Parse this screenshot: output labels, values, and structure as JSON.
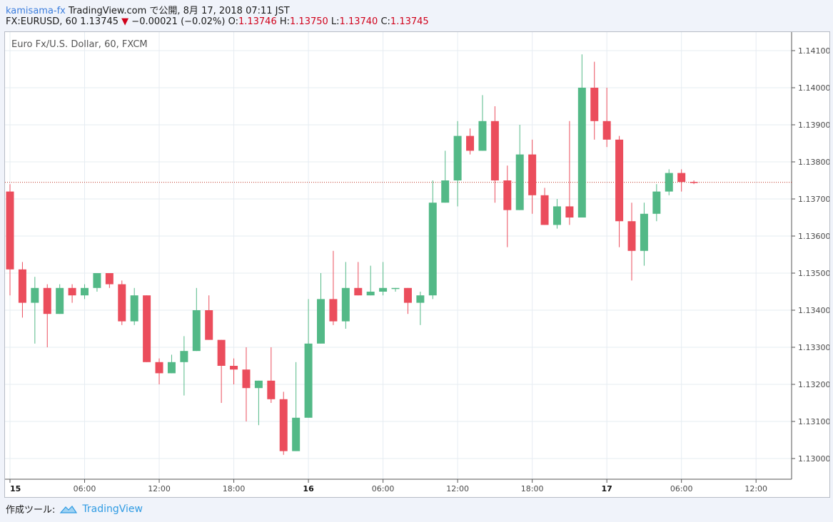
{
  "header": {
    "author": "kamisama-fx",
    "published": "TradingView.com で公開, 8月 17, 2018 07:11 JST",
    "symbol": "FX:EURUSD, 60",
    "last": "1.13745",
    "change_arrow": "▼",
    "change": "−0.00021 (−0.02%)",
    "o_label": "O:",
    "o": "1.13746",
    "h_label": "H:",
    "h": "1.13750",
    "l_label": "L:",
    "l": "1.13740",
    "c_label": "C:",
    "c": "1.13745"
  },
  "footer": {
    "label": "作成ツール:",
    "brand": "TradingView"
  },
  "colors": {
    "up": "#53b987",
    "down": "#eb4d5c",
    "grid": "#e6ecf2",
    "axis_text": "#4a4a4a",
    "price_line": "#c0392b"
  },
  "chart_data": {
    "type": "candlestick",
    "title": "Euro Fx/U.S. Dollar, 60, FXCM",
    "interval_hours": 1,
    "x_start": "15 00:00",
    "ylim": [
      1.1298,
      1.1412
    ],
    "y_ticks": [
      1.13,
      1.131,
      1.132,
      1.133,
      1.134,
      1.135,
      1.136,
      1.137,
      1.138,
      1.139,
      1.14,
      1.141
    ],
    "y_tick_labels": [
      "1.13000",
      "1.13100",
      "1.13200",
      "1.13300",
      "1.13400",
      "1.13500",
      "1.13600",
      "1.13700",
      "1.13800",
      "1.13900",
      "1.14000",
      "1.14100"
    ],
    "x_ticks": [
      0,
      6,
      12,
      18,
      24,
      30,
      36,
      42,
      48,
      54,
      60
    ],
    "x_tick_labels": [
      "15",
      "06:00",
      "12:00",
      "18:00",
      "16",
      "06:00",
      "12:00",
      "18:00",
      "17",
      "06:00",
      "12:00"
    ],
    "x_tick_bold": [
      true,
      false,
      false,
      false,
      true,
      false,
      false,
      false,
      true,
      false,
      false
    ],
    "last_price": 1.13745,
    "grid": true,
    "candles": [
      {
        "o": 1.1372,
        "h": 1.1374,
        "l": 1.1344,
        "c": 1.1351
      },
      {
        "o": 1.1351,
        "h": 1.1353,
        "l": 1.1338,
        "c": 1.1342
      },
      {
        "o": 1.1342,
        "h": 1.1349,
        "l": 1.1331,
        "c": 1.1346
      },
      {
        "o": 1.1346,
        "h": 1.1347,
        "l": 1.133,
        "c": 1.1339
      },
      {
        "o": 1.1339,
        "h": 1.1347,
        "l": 1.1339,
        "c": 1.1346
      },
      {
        "o": 1.1346,
        "h": 1.1347,
        "l": 1.1342,
        "c": 1.1344
      },
      {
        "o": 1.1344,
        "h": 1.1347,
        "l": 1.1343,
        "c": 1.1346
      },
      {
        "o": 1.1346,
        "h": 1.135,
        "l": 1.1345,
        "c": 1.135
      },
      {
        "o": 1.135,
        "h": 1.135,
        "l": 1.1346,
        "c": 1.1347
      },
      {
        "o": 1.1347,
        "h": 1.1348,
        "l": 1.1336,
        "c": 1.1337
      },
      {
        "o": 1.1337,
        "h": 1.1346,
        "l": 1.1336,
        "c": 1.1344
      },
      {
        "o": 1.1344,
        "h": 1.1344,
        "l": 1.1326,
        "c": 1.1326
      },
      {
        "o": 1.1326,
        "h": 1.1327,
        "l": 1.132,
        "c": 1.1323
      },
      {
        "o": 1.1323,
        "h": 1.1328,
        "l": 1.1323,
        "c": 1.1326
      },
      {
        "o": 1.1326,
        "h": 1.1333,
        "l": 1.1317,
        "c": 1.1329
      },
      {
        "o": 1.1329,
        "h": 1.1346,
        "l": 1.1329,
        "c": 1.134
      },
      {
        "o": 1.134,
        "h": 1.1344,
        "l": 1.1332,
        "c": 1.1332
      },
      {
        "o": 1.1332,
        "h": 1.1332,
        "l": 1.1315,
        "c": 1.1325
      },
      {
        "o": 1.1325,
        "h": 1.1327,
        "l": 1.132,
        "c": 1.1324
      },
      {
        "o": 1.1324,
        "h": 1.133,
        "l": 1.131,
        "c": 1.1319
      },
      {
        "o": 1.1319,
        "h": 1.1321,
        "l": 1.1309,
        "c": 1.1321
      },
      {
        "o": 1.1321,
        "h": 1.133,
        "l": 1.1315,
        "c": 1.1316
      },
      {
        "o": 1.1316,
        "h": 1.1318,
        "l": 1.1301,
        "c": 1.1302
      },
      {
        "o": 1.1302,
        "h": 1.1326,
        "l": 1.1302,
        "c": 1.1311
      },
      {
        "o": 1.1311,
        "h": 1.1343,
        "l": 1.1311,
        "c": 1.1331
      },
      {
        "o": 1.1331,
        "h": 1.135,
        "l": 1.1331,
        "c": 1.1343
      },
      {
        "o": 1.1343,
        "h": 1.1356,
        "l": 1.1336,
        "c": 1.1337
      },
      {
        "o": 1.1337,
        "h": 1.1353,
        "l": 1.1335,
        "c": 1.1346
      },
      {
        "o": 1.1346,
        "h": 1.1353,
        "l": 1.1344,
        "c": 1.1344
      },
      {
        "o": 1.1344,
        "h": 1.1352,
        "l": 1.1344,
        "c": 1.1345
      },
      {
        "o": 1.1345,
        "h": 1.1353,
        "l": 1.1344,
        "c": 1.1346
      },
      {
        "o": 1.1346,
        "h": 1.1346,
        "l": 1.1345,
        "c": 1.1346
      },
      {
        "o": 1.1346,
        "h": 1.1346,
        "l": 1.1339,
        "c": 1.1342
      },
      {
        "o": 1.1342,
        "h": 1.1345,
        "l": 1.1336,
        "c": 1.1344
      },
      {
        "o": 1.1344,
        "h": 1.1375,
        "l": 1.1343,
        "c": 1.1369
      },
      {
        "o": 1.1369,
        "h": 1.1383,
        "l": 1.1369,
        "c": 1.1375
      },
      {
        "o": 1.1375,
        "h": 1.1391,
        "l": 1.1368,
        "c": 1.1387
      },
      {
        "o": 1.1387,
        "h": 1.1389,
        "l": 1.1382,
        "c": 1.1383
      },
      {
        "o": 1.1383,
        "h": 1.1398,
        "l": 1.1383,
        "c": 1.1391
      },
      {
        "o": 1.1391,
        "h": 1.1395,
        "l": 1.1369,
        "c": 1.1375
      },
      {
        "o": 1.1375,
        "h": 1.1379,
        "l": 1.1357,
        "c": 1.1367
      },
      {
        "o": 1.1367,
        "h": 1.139,
        "l": 1.1367,
        "c": 1.1382
      },
      {
        "o": 1.1382,
        "h": 1.1386,
        "l": 1.1366,
        "c": 1.1371
      },
      {
        "o": 1.1371,
        "h": 1.1373,
        "l": 1.1363,
        "c": 1.1363
      },
      {
        "o": 1.1363,
        "h": 1.137,
        "l": 1.1362,
        "c": 1.1368
      },
      {
        "o": 1.1368,
        "h": 1.1391,
        "l": 1.1363,
        "c": 1.1365
      },
      {
        "o": 1.1365,
        "h": 1.1409,
        "l": 1.1365,
        "c": 1.14
      },
      {
        "o": 1.14,
        "h": 1.1407,
        "l": 1.1386,
        "c": 1.1391
      },
      {
        "o": 1.1391,
        "h": 1.14,
        "l": 1.1384,
        "c": 1.1386
      },
      {
        "o": 1.1386,
        "h": 1.1387,
        "l": 1.1357,
        "c": 1.1364
      },
      {
        "o": 1.1364,
        "h": 1.1369,
        "l": 1.1348,
        "c": 1.1356
      },
      {
        "o": 1.1356,
        "h": 1.1369,
        "l": 1.1352,
        "c": 1.1366
      },
      {
        "o": 1.1366,
        "h": 1.1374,
        "l": 1.1364,
        "c": 1.1372
      },
      {
        "o": 1.1372,
        "h": 1.1378,
        "l": 1.1371,
        "c": 1.1377
      },
      {
        "o": 1.1377,
        "h": 1.1378,
        "l": 1.1372,
        "c": 1.13746
      },
      {
        "o": 1.13746,
        "h": 1.1375,
        "l": 1.1374,
        "c": 1.13745
      }
    ]
  }
}
